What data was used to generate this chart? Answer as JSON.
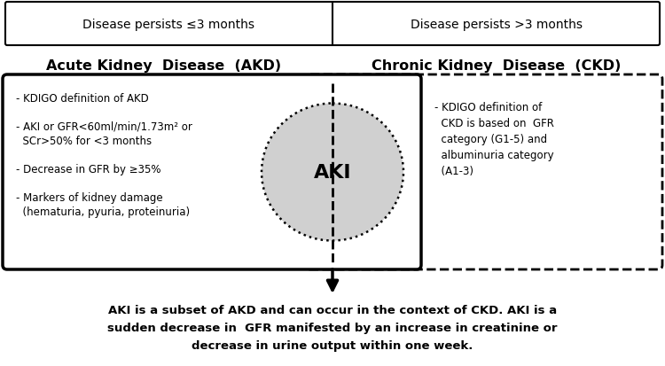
{
  "fig_width": 7.5,
  "fig_height": 4.14,
  "dpi": 100,
  "bg_color": "#ffffff",
  "top_box_left_text": "Disease persists ≤3 months",
  "top_box_right_text": "Disease persists >3 months",
  "akd_label": "Acute Kidney  Disease  (AKD)",
  "ckd_label": "Chronic Kidney  Disease  (CKD)",
  "left_box_text": "- KDIGO definition of AKD\n\n- AKI or GFR<60ml/min/1.73m² or\n  SCr>50% for <3 months\n\n- Decrease in GFR by ≥35%\n\n- Markers of kidney damage\n  (hematuria, pyuria, proteinuria)",
  "right_box_text": "- KDIGO definition of\n  CKD is based on  GFR\n  category (G1-5) and\n  albuminuria category\n  (A1-3)",
  "aki_label": "AKI",
  "bottom_line1": "AKI is a subset of AKD and can occur in the context of CKD. AKI is a",
  "bottom_line2": "sudden decrease in  GFR manifested by an increase in creatinine or",
  "bottom_line3": "decrease in urine output within one week."
}
